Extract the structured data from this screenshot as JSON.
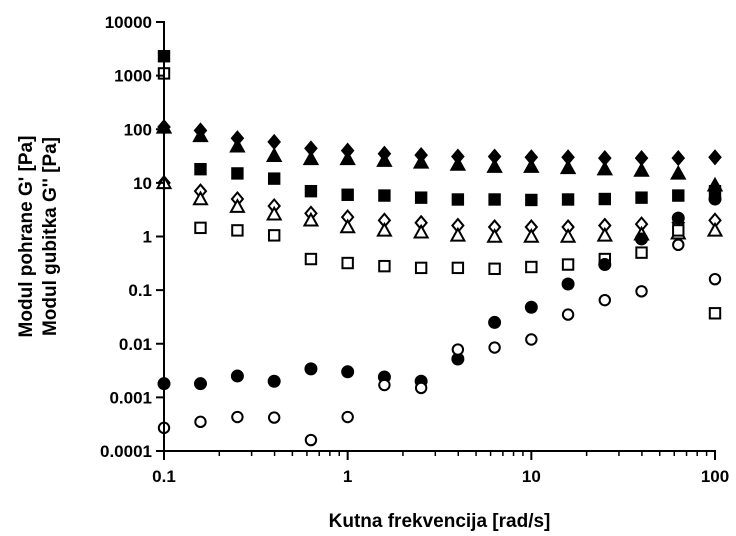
{
  "chart_data": {
    "type": "scatter",
    "title": "",
    "xlabel": "Kutna frekvencija [rad/s]",
    "ylabel_lines": [
      "Modul pohrane G' [Pa]",
      "Modul gubitka G'' [Pa]"
    ],
    "xscale": "log",
    "yscale": "log",
    "xlim": [
      0.1,
      100
    ],
    "ylim": [
      0.0001,
      10000
    ],
    "grid": false,
    "legend": "none",
    "x_ticks": [
      {
        "value": 0.1,
        "label": "0.1"
      },
      {
        "value": 1,
        "label": "1"
      },
      {
        "value": 10,
        "label": "10"
      },
      {
        "value": 100,
        "label": "100"
      }
    ],
    "y_ticks": [
      {
        "value": 10000,
        "label": "10000"
      },
      {
        "value": 1000,
        "label": "1000"
      },
      {
        "value": 100,
        "label": "100"
      },
      {
        "value": 10,
        "label": "10"
      },
      {
        "value": 1,
        "label": "1"
      },
      {
        "value": 0.1,
        "label": "0.1"
      },
      {
        "value": 0.01,
        "label": "0.01"
      },
      {
        "value": 0.001,
        "label": "0.001"
      },
      {
        "value": 0.0001,
        "label": "0.0001"
      }
    ],
    "series": [
      {
        "marker": "diamond",
        "filled": true,
        "points": [
          [
            0.1,
            110
          ],
          [
            0.158,
            95
          ],
          [
            0.251,
            68
          ],
          [
            0.398,
            58
          ],
          [
            0.631,
            44
          ],
          [
            1,
            40
          ],
          [
            1.585,
            35
          ],
          [
            2.512,
            33
          ],
          [
            3.981,
            31
          ],
          [
            6.31,
            31
          ],
          [
            10,
            30
          ],
          [
            15.85,
            30
          ],
          [
            25.12,
            29
          ],
          [
            39.81,
            29
          ],
          [
            63.1,
            29
          ],
          [
            100,
            30
          ]
        ]
      },
      {
        "marker": "triangle",
        "filled": true,
        "points": [
          [
            0.1,
            108
          ],
          [
            0.158,
            75
          ],
          [
            0.251,
            48
          ],
          [
            0.398,
            32
          ],
          [
            0.631,
            28
          ],
          [
            1,
            28
          ],
          [
            1.585,
            26
          ],
          [
            2.512,
            24
          ],
          [
            3.981,
            22
          ],
          [
            6.31,
            20
          ],
          [
            10,
            20
          ],
          [
            15.85,
            19
          ],
          [
            25.12,
            18
          ],
          [
            39.81,
            17
          ],
          [
            63.1,
            15
          ],
          [
            100,
            9
          ]
        ]
      },
      {
        "marker": "square",
        "filled": true,
        "points": [
          [
            0.1,
            2300
          ],
          [
            0.158,
            18
          ],
          [
            0.251,
            15
          ],
          [
            0.398,
            12
          ],
          [
            0.631,
            7
          ],
          [
            1,
            6
          ],
          [
            1.585,
            5.8
          ],
          [
            2.512,
            5.3
          ],
          [
            3.981,
            4.9
          ],
          [
            6.31,
            4.9
          ],
          [
            10,
            4.8
          ],
          [
            15.85,
            4.9
          ],
          [
            25.12,
            5
          ],
          [
            39.81,
            5.3
          ],
          [
            63.1,
            5.8
          ],
          [
            100,
            7
          ]
        ]
      },
      {
        "marker": "diamond",
        "filled": false,
        "points": [
          [
            0.1,
            10
          ],
          [
            0.158,
            7
          ],
          [
            0.251,
            5
          ],
          [
            0.398,
            3.7
          ],
          [
            0.631,
            2.7
          ],
          [
            1,
            2.3
          ],
          [
            1.585,
            2
          ],
          [
            2.512,
            1.8
          ],
          [
            3.981,
            1.6
          ],
          [
            6.31,
            1.5
          ],
          [
            10,
            1.5
          ],
          [
            15.85,
            1.5
          ],
          [
            25.12,
            1.6
          ],
          [
            39.81,
            1.7
          ],
          [
            63.1,
            1.8
          ],
          [
            100,
            2
          ]
        ]
      },
      {
        "marker": "triangle",
        "filled": false,
        "points": [
          [
            0.1,
            10
          ],
          [
            0.158,
            5
          ],
          [
            0.251,
            3.6
          ],
          [
            0.398,
            2.6
          ],
          [
            0.631,
            2
          ],
          [
            1,
            1.5
          ],
          [
            1.585,
            1.3
          ],
          [
            2.512,
            1.2
          ],
          [
            3.981,
            1.05
          ],
          [
            6.31,
            1
          ],
          [
            10,
            1
          ],
          [
            15.85,
            1
          ],
          [
            25.12,
            1.05
          ],
          [
            39.81,
            1.1
          ],
          [
            63.1,
            1.15
          ],
          [
            100,
            1.3
          ]
        ]
      },
      {
        "marker": "square",
        "filled": false,
        "points": [
          [
            0.1,
            1100
          ],
          [
            0.158,
            1.45
          ],
          [
            0.251,
            1.3
          ],
          [
            0.398,
            1.05
          ],
          [
            0.631,
            0.38
          ],
          [
            1,
            0.32
          ],
          [
            1.585,
            0.28
          ],
          [
            2.512,
            0.26
          ],
          [
            3.981,
            0.26
          ],
          [
            6.31,
            0.25
          ],
          [
            10,
            0.27
          ],
          [
            15.85,
            0.3
          ],
          [
            25.12,
            0.38
          ],
          [
            39.81,
            0.5
          ],
          [
            63.1,
            1.3
          ],
          [
            100,
            0.037
          ]
        ]
      },
      {
        "marker": "circle",
        "filled": true,
        "points": [
          [
            0.1,
            0.0018
          ],
          [
            0.158,
            0.0018
          ],
          [
            0.251,
            0.0025
          ],
          [
            0.398,
            0.002
          ],
          [
            0.631,
            0.0034
          ],
          [
            1,
            0.003
          ],
          [
            1.585,
            0.0024
          ],
          [
            2.512,
            0.002
          ],
          [
            3.981,
            0.0052
          ],
          [
            6.31,
            0.025
          ],
          [
            10,
            0.048
          ],
          [
            15.85,
            0.13
          ],
          [
            25.12,
            0.3
          ],
          [
            39.81,
            0.9
          ],
          [
            63.1,
            2.2
          ],
          [
            100,
            5
          ]
        ]
      },
      {
        "marker": "circle",
        "filled": false,
        "points": [
          [
            0.1,
            0.00027
          ],
          [
            0.158,
            0.00035
          ],
          [
            0.251,
            0.00043
          ],
          [
            0.398,
            0.00042
          ],
          [
            0.631,
            0.00016
          ],
          [
            1,
            0.00043
          ],
          [
            1.585,
            0.0017
          ],
          [
            2.512,
            0.0015
          ],
          [
            3.981,
            0.0078
          ],
          [
            6.31,
            0.0085
          ],
          [
            10,
            0.012
          ],
          [
            15.85,
            0.035
          ],
          [
            25.12,
            0.065
          ],
          [
            39.81,
            0.095
          ],
          [
            63.1,
            0.7
          ],
          [
            100,
            0.16
          ]
        ]
      }
    ]
  }
}
